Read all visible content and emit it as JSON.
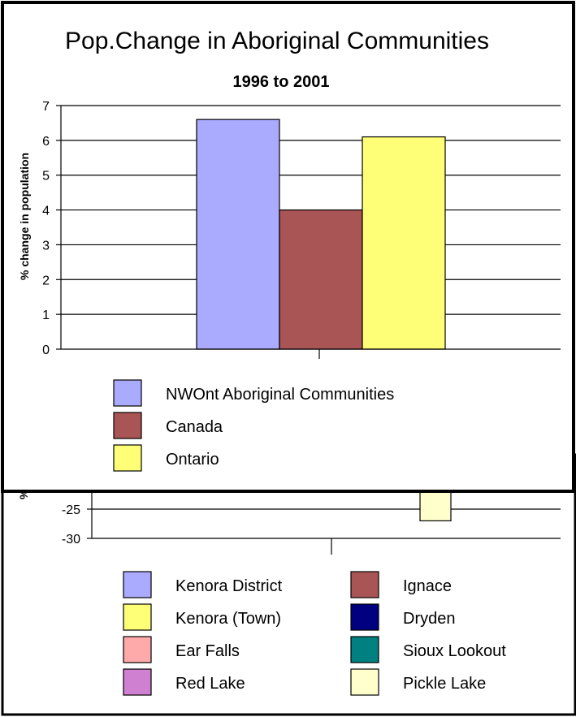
{
  "chart_data": [
    {
      "type": "bar",
      "title": "Pop.Change in Aboriginal Communities",
      "subtitle": "1996 to 2001",
      "ylabel": "% change in population",
      "xlabel": "",
      "ylim": [
        0,
        7
      ],
      "yticks": [
        0,
        1,
        2,
        3,
        4,
        5,
        6,
        7
      ],
      "grid": true,
      "legend": "bottom",
      "series": [
        {
          "name": "NWOnt Aboriginal Communities",
          "values": [
            6.6
          ],
          "color": "#aaaaff"
        },
        {
          "name": "Canada",
          "values": [
            4.0
          ],
          "color": "#aa5555"
        },
        {
          "name": "Ontario",
          "values": [
            6.1
          ],
          "color": "#ffff77"
        }
      ]
    },
    {
      "type": "bar",
      "title": "",
      "ylabel": "%",
      "ylim": [
        -30,
        -20
      ],
      "yticks": [
        -25,
        -30
      ],
      "grid": true,
      "legend": "bottom",
      "visible_bars": [
        {
          "name": "Pickle Lake",
          "value": -27,
          "color": "#ffffcc"
        }
      ],
      "series": [
        {
          "name": "Kenora District",
          "color": "#aaaaff"
        },
        {
          "name": "Ignace",
          "color": "#aa5555"
        },
        {
          "name": "Kenora (Town)",
          "color": "#ffff77"
        },
        {
          "name": "Dryden",
          "color": "#000080"
        },
        {
          "name": "Ear Falls",
          "color": "#ffaaaa"
        },
        {
          "name": "Sioux Lookout",
          "color": "#008080"
        },
        {
          "name": "Red Lake",
          "color": "#d080d0"
        },
        {
          "name": "Pickle Lake",
          "color": "#ffffcc"
        }
      ]
    }
  ]
}
